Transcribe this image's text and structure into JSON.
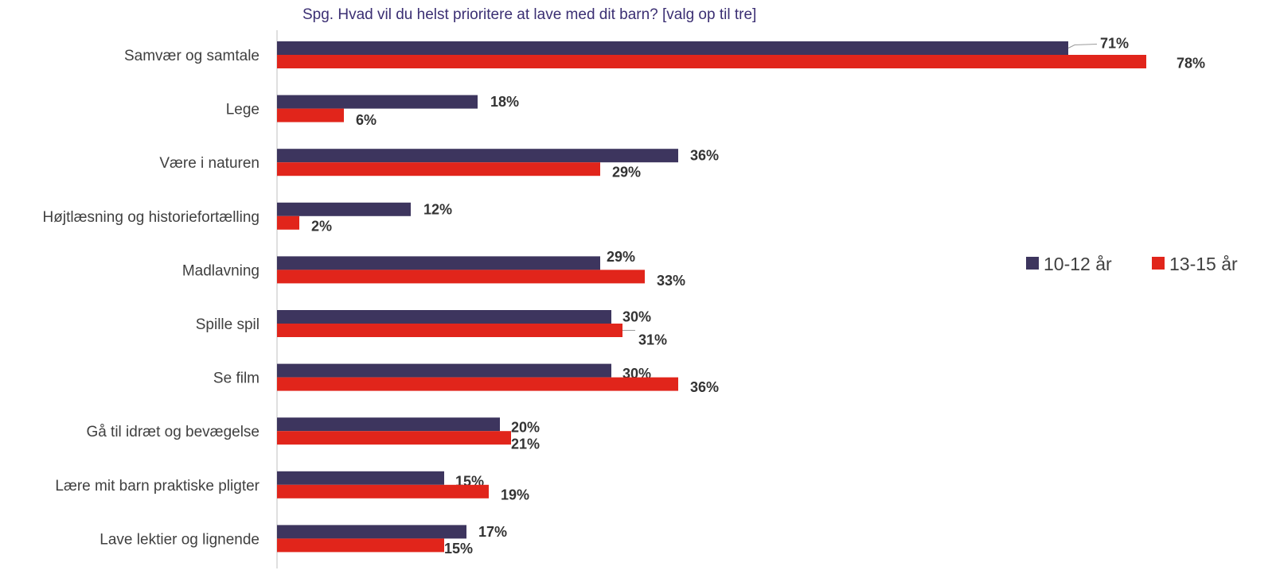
{
  "chart_data": {
    "type": "bar",
    "orientation": "horizontal",
    "title": "Spg. Hvad vil du helst prioritere at lave med dit barn? [valg op til tre]",
    "categories": [
      "Samvær og samtale",
      "Lege",
      "Være i naturen",
      "Højtlæsning og historiefortælling",
      "Madlavning",
      "Spille spil",
      "Se film",
      "Gå til idræt og bevægelse",
      "Lære mit barn praktiske pligter",
      "Lave lektier og lignende"
    ],
    "series": [
      {
        "name": "10-12 år",
        "color": "#3d355e",
        "values": [
          71,
          18,
          36,
          12,
          29,
          30,
          30,
          20,
          15,
          17
        ],
        "labels": [
          "71%",
          "18%",
          "36%",
          "12%",
          "29%",
          "30%",
          "30%",
          "20%",
          "15%",
          "17%"
        ]
      },
      {
        "name": "13-15 år",
        "color": "#e1251b",
        "values": [
          78,
          6,
          29,
          2,
          33,
          31,
          36,
          21,
          19,
          15
        ],
        "labels": [
          "78%",
          "6%",
          "29%",
          "2%",
          "33%",
          "31%",
          "36%",
          "21%",
          "19%",
          "15%"
        ]
      }
    ],
    "xlim": [
      0,
      88
    ],
    "unit": "%",
    "grid": false,
    "legend_position": "right"
  }
}
